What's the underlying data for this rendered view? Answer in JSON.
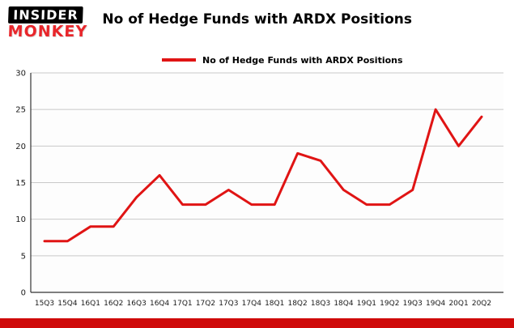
{
  "header": {
    "logo_top": "INSIDER",
    "logo_bottom": "MONKEY",
    "title": "No of Hedge Funds with ARDX Positions"
  },
  "legend": {
    "label": "No of Hedge Funds with ARDX Positions"
  },
  "colors": {
    "line_red": "#e01414",
    "bottom_bar_red": "#cf0a0a",
    "gridline_gray": "#c9c9c9",
    "axis_gray": "#333333"
  },
  "chart_data": {
    "type": "line",
    "title": "No of Hedge Funds with ARDX Positions",
    "categories": [
      "15Q3",
      "15Q4",
      "16Q1",
      "16Q2",
      "16Q3",
      "16Q4",
      "17Q1",
      "17Q2",
      "17Q3",
      "17Q4",
      "18Q1",
      "18Q2",
      "18Q3",
      "18Q4",
      "19Q1",
      "19Q2",
      "19Q3",
      "19Q4",
      "20Q1",
      "20Q2"
    ],
    "values": [
      7,
      7,
      9,
      9,
      13,
      16,
      12,
      12,
      14,
      12,
      12,
      19,
      18,
      14,
      12,
      12,
      14,
      25,
      20,
      24
    ],
    "xlabel": "",
    "ylabel": "",
    "ylim": [
      0,
      30
    ],
    "yticks": [
      0,
      5,
      10,
      15,
      20,
      25,
      30
    ],
    "grid": true,
    "legend_position": "top",
    "line_color": "#e01414",
    "line_width": 3
  }
}
